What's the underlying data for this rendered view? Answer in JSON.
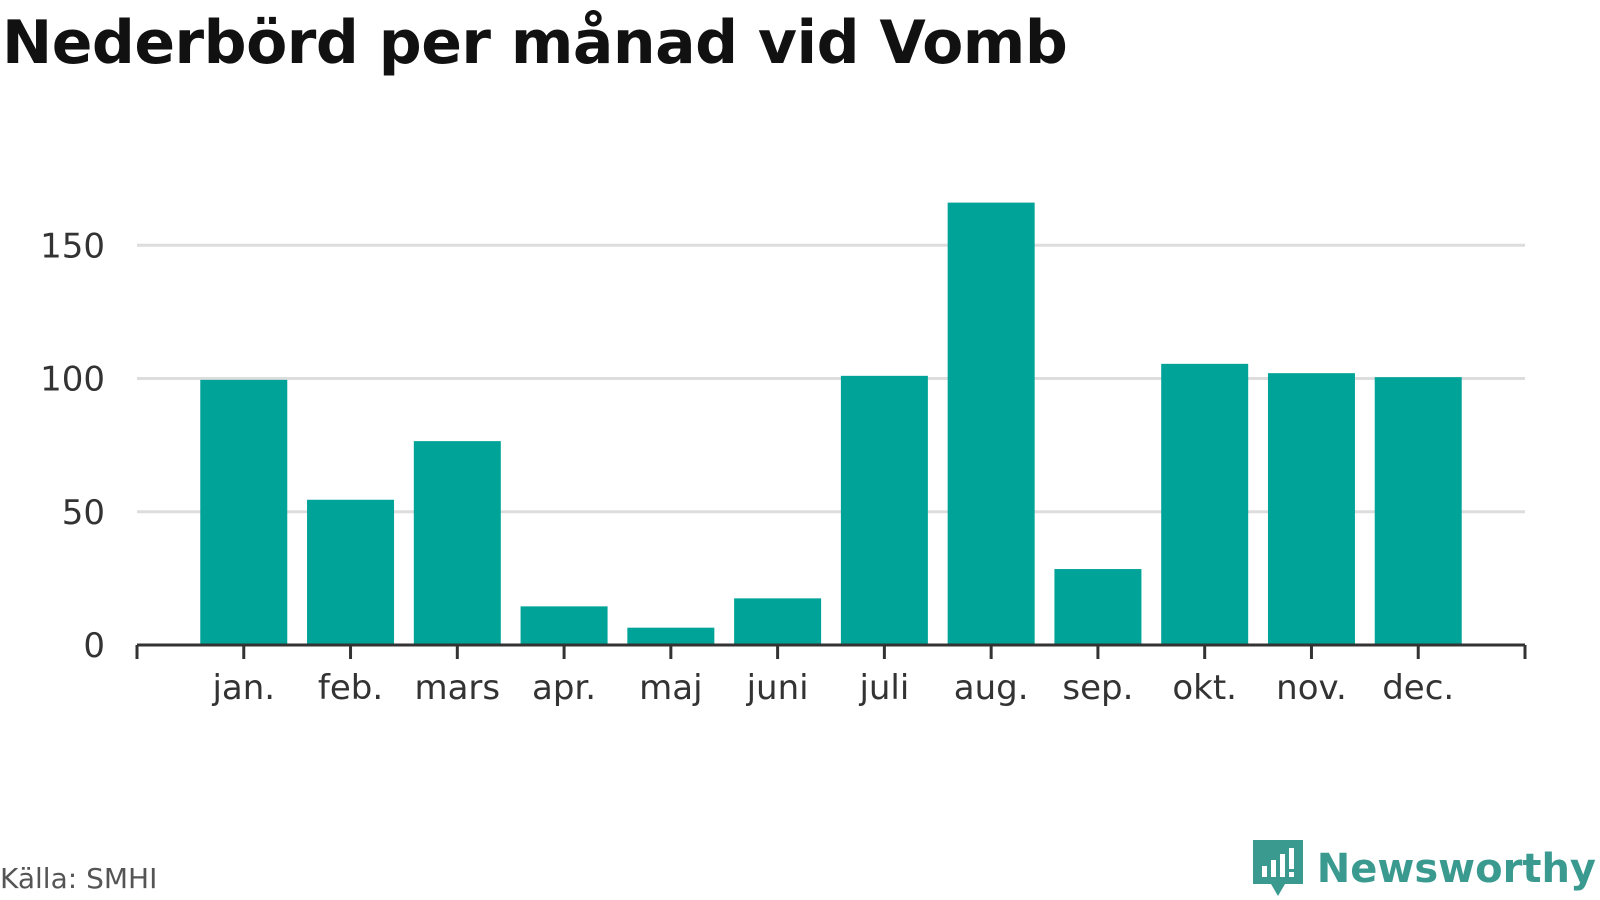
{
  "title": "Nederbörd per månad vid Vomb",
  "source": "Källa: SMHI",
  "brand": {
    "name": "Newsworthy",
    "icon": "bar-chart-logo-icon"
  },
  "colors": {
    "bar": "#00A398",
    "grid": "#dddddd",
    "axis": "#333333",
    "brand": "#3a9a8f"
  },
  "chart_data": {
    "type": "bar",
    "title": "Nederbörd per månad vid Vomb",
    "xlabel": "",
    "ylabel": "",
    "categories": [
      "jan.",
      "feb.",
      "mars",
      "apr.",
      "maj",
      "juni",
      "juli",
      "aug.",
      "sep.",
      "okt.",
      "nov.",
      "dec."
    ],
    "values": [
      99.5,
      54.5,
      76.5,
      14.5,
      6.5,
      17.5,
      101,
      166,
      28.5,
      105.5,
      102,
      100.5
    ],
    "yticks": [
      0,
      50,
      100,
      150
    ],
    "ylim": [
      0,
      166
    ],
    "grid": true,
    "legend": "none"
  }
}
